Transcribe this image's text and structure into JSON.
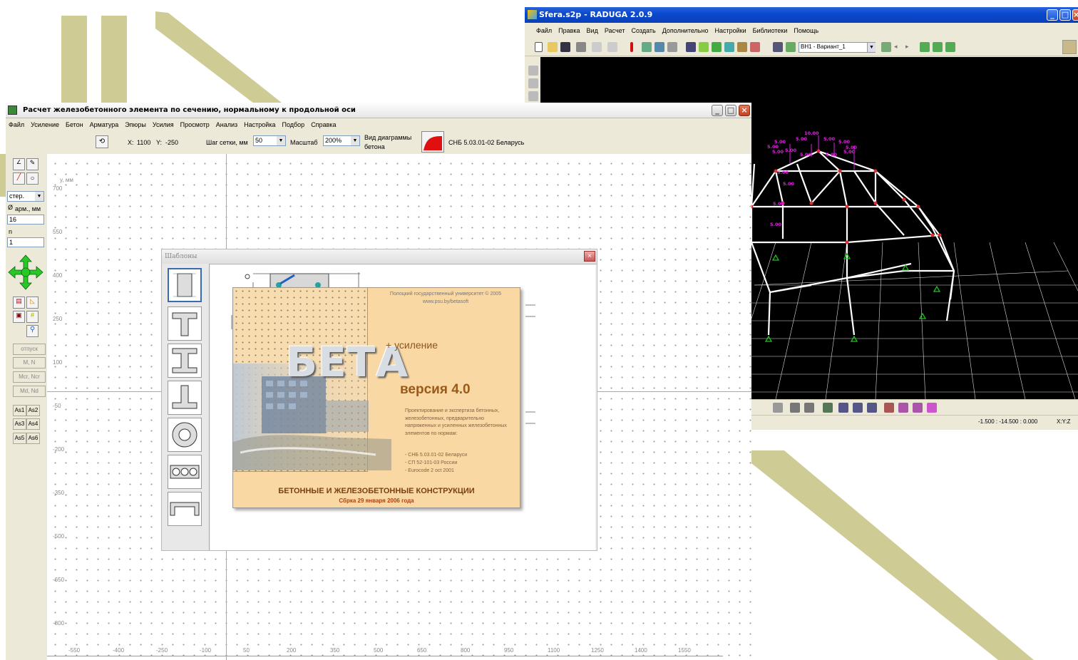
{
  "raduga": {
    "title": "Sfera.s2p - RADUGA 2.0.9",
    "menu": [
      "Файл",
      "Правка",
      "Вид",
      "Расчет",
      "Создать",
      "Дополнительно",
      "Настройки",
      "Библиотеки",
      "Помощь"
    ],
    "variant_select": "ВН1 - Вариант_1",
    "load_labels": [
      "10.00",
      "5.00",
      "5.00",
      "5.00",
      "5.00",
      "5.00",
      "5.00",
      "5.00",
      "5.00",
      "5.00",
      "5.00",
      "5.00",
      "5.00",
      "5.00",
      "5.00",
      "5.00"
    ],
    "status_coords": "-1.500 : -14.500 : 0.000",
    "status_axes": "X:Y:Z"
  },
  "beta": {
    "title": "Расчет железобетонного элемента по сечению, нормальному к продольной оси",
    "menu": [
      "Файл",
      "Усиление",
      "Бетон",
      "Арматура",
      "Эпюры",
      "Усилия",
      "Просмотр",
      "Анализ",
      "Настройка",
      "Подбор",
      "Справка"
    ],
    "toolbar": {
      "x_label": "X:",
      "x_value": "1100",
      "y_label": "Y:",
      "y_value": "-250",
      "grid_step_label": "Шаг сетки, мм",
      "grid_step_value": "50",
      "scale_label": "Масштаб",
      "scale_value": "200%",
      "diagram_label_1": "Вид диаграммы",
      "diagram_label_2": "бетона",
      "norm": "СНБ 5.03.01-02 Беларусь"
    },
    "sidebar": {
      "rebar_type": "стер.",
      "diameter_label": "арм., мм",
      "diameter_value": "16",
      "n_label": "n",
      "n_value": "1",
      "buttons": [
        "отпуск",
        "M, N",
        "Mcr, Ncr",
        "Md, Nd"
      ],
      "as_buttons": [
        "As1",
        "As2",
        "As3",
        "As4",
        "As5",
        "As6"
      ]
    },
    "axis": {
      "y_unit": "y, мм",
      "y_ticks": [
        "700",
        "550",
        "400",
        "250",
        "100",
        "-50",
        "-200",
        "-350",
        "-500",
        "-650",
        "-800"
      ],
      "x_ticks": [
        "-550",
        "-400",
        "-250",
        "-100",
        "50",
        "200",
        "350",
        "500",
        "650",
        "800",
        "950",
        "1100",
        "1250",
        "1400",
        "1550"
      ]
    },
    "dialog": {
      "title": "Шаблоны"
    },
    "splash": {
      "university": "Полоцкий государственный университет © 2005",
      "url": "www.psu.by/betasoft",
      "logo": "БЕТА",
      "plus": "+ усиление",
      "version": "версия 4.0",
      "description": "Проектирование и экспертиза бетонных, железобетонных, предварительно напряженных и усиленных железобетонных элементов по нормам:",
      "norms": [
        "- СНБ 5.03.01-02 Беларуси",
        "- СП 52-101-03 России",
        "- Eurocode 2 oct 2001"
      ],
      "heading": "БЕТОННЫЕ И ЖЕЛЕЗОБЕТОННЫЕ КОНСТРУКЦИИ",
      "build": "Сбрка 29 января 2006 года"
    }
  },
  "colors": {
    "deco": "#cfcb94",
    "xp_blue": "#0a4ad0",
    "splash_bg": "#f9d8a4",
    "version_brown": "#9a5a1a",
    "load_magenta": "#e020e0"
  }
}
